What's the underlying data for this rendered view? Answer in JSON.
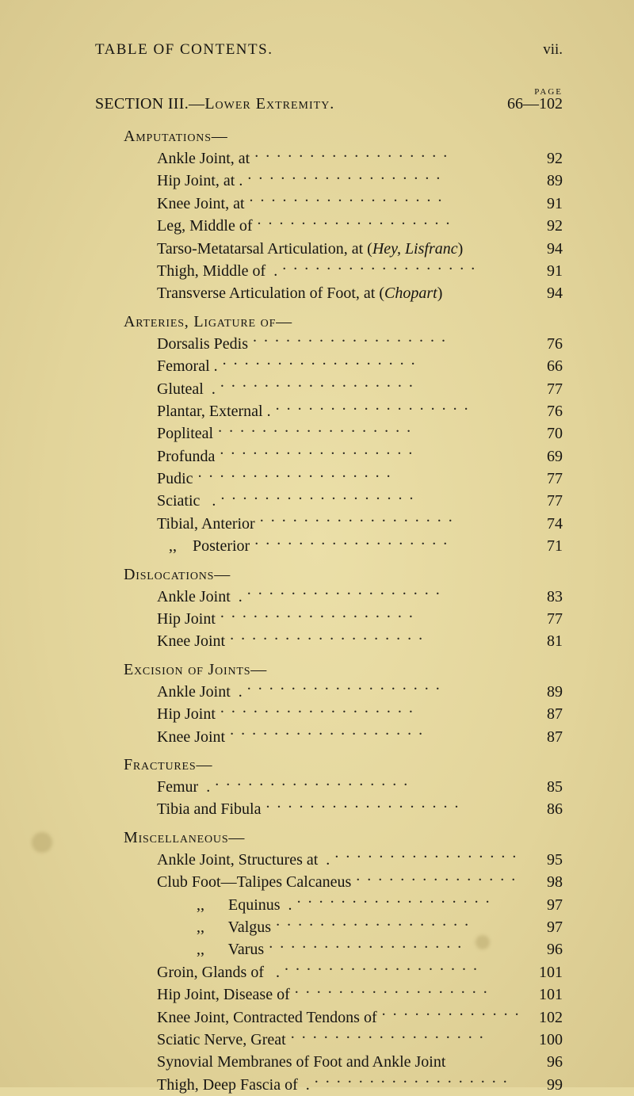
{
  "colors": {
    "paper_center": "#ebdfa8",
    "paper_mid": "#e2d49a",
    "paper_edge": "#d8c88e",
    "ink": "#171512"
  },
  "running_head": {
    "left": "TABLE OF CONTENTS.",
    "right": "vii."
  },
  "page_label": "PAGE",
  "section": {
    "label_left": "SECTION III.—",
    "label_sc": "Lower Extremity.",
    "range": "66—102"
  },
  "groups": [
    {
      "head": "Amputations—",
      "entries": [
        {
          "text": "Ankle Joint, at",
          "page": "92"
        },
        {
          "text": "Hip Joint, at .",
          "page": "89"
        },
        {
          "text": "Knee Joint, at",
          "page": "91"
        },
        {
          "text": "Leg, Middle of",
          "page": "92"
        },
        {
          "text_html": "Tarso-Metatarsal Articulation, at (<i>Hey, Lisfranc</i>)",
          "page": "94",
          "tight": true
        },
        {
          "text": "Thigh, Middle of  .",
          "page": "91"
        },
        {
          "text_html": "Transverse Articulation of Foot, at (<i>Chopart</i>)",
          "page": "94",
          "tight": true
        }
      ]
    },
    {
      "head": "Arteries, Ligature of—",
      "entries": [
        {
          "text": "Dorsalis Pedis",
          "page": "76"
        },
        {
          "text": "Femoral .",
          "page": "66"
        },
        {
          "text": "Gluteal  .",
          "page": "77"
        },
        {
          "text": "Plantar, External .",
          "page": "76"
        },
        {
          "text": "Popliteal",
          "page": "70"
        },
        {
          "text": "Profunda",
          "page": "69"
        },
        {
          "text": "Pudic",
          "page": "77"
        },
        {
          "text": "Sciatic   .",
          "page": "77"
        },
        {
          "text": "Tibial, Anterior",
          "page": "74"
        },
        {
          "text": "   ,,    Posterior",
          "page": "71"
        }
      ]
    },
    {
      "head": "Dislocations—",
      "entries": [
        {
          "text": "Ankle Joint  .",
          "page": "83"
        },
        {
          "text": "Hip Joint",
          "page": "77"
        },
        {
          "text": "Knee Joint",
          "page": "81"
        }
      ]
    },
    {
      "head": "Excision of Joints—",
      "entries": [
        {
          "text": "Ankle Joint  .",
          "page": "89"
        },
        {
          "text": "Hip Joint",
          "page": "87"
        },
        {
          "text": "Knee Joint",
          "page": "87"
        }
      ]
    },
    {
      "head": "Fractures—",
      "entries": [
        {
          "text": "Femur  .",
          "page": "85"
        },
        {
          "text": "Tibia and Fibula",
          "page": "86"
        }
      ]
    },
    {
      "head": "Miscellaneous—",
      "entries": [
        {
          "text": "Ankle Joint, Structures at  .",
          "page": "95"
        },
        {
          "text": "Club Foot—Talipes Calcaneus",
          "page": "98"
        },
        {
          "text": ",,      Equinus  .",
          "page": "97",
          "sub": true
        },
        {
          "text": ",,      Valgus",
          "page": "97",
          "sub": true
        },
        {
          "text": ",,      Varus",
          "page": "96",
          "sub": true
        },
        {
          "text": "Groin, Glands of   .",
          "page": "101"
        },
        {
          "text": "Hip Joint, Disease of",
          "page": "101"
        },
        {
          "text": "Knee Joint, Contracted Tendons of",
          "page": "102"
        },
        {
          "text": "Sciatic Nerve, Great",
          "page": "100"
        },
        {
          "text": "Synovial Membranes of Foot and Ankle Joint",
          "page": "96",
          "tight": true
        },
        {
          "text": "Thigh, Deep Fascia of  .",
          "page": "99"
        }
      ]
    }
  ]
}
